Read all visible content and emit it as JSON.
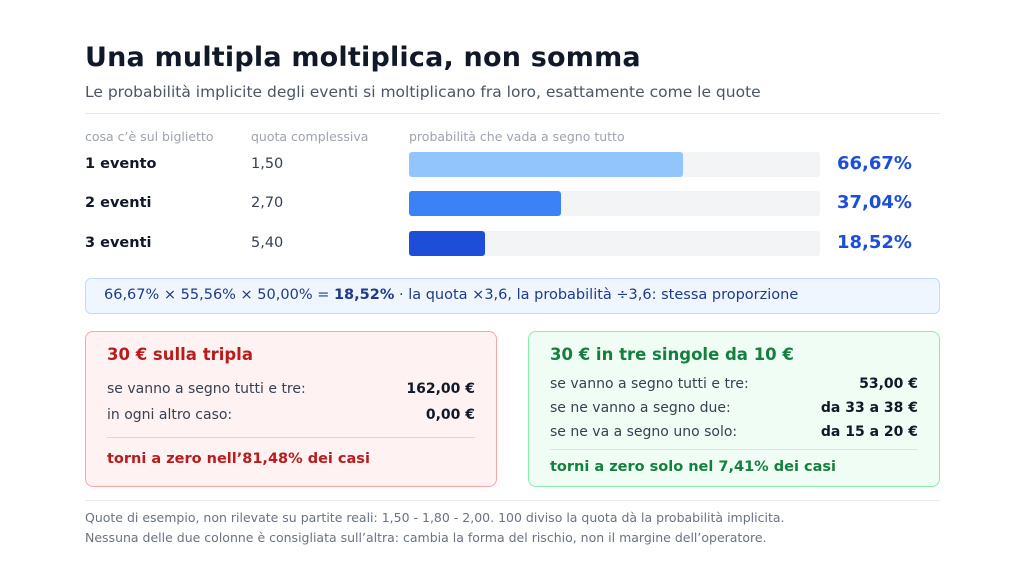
{
  "header": {
    "title": "Una multipla moltiplica, non somma",
    "subtitle": "Le probabilità implicite degli eventi si moltiplicano fra loro, esattamente come le quote"
  },
  "columns": {
    "ticket": "cosa c’è sul biglietto",
    "quota": "quota complessiva",
    "probability": "probabilità che vada a segno tutto"
  },
  "rows": [
    {
      "label": "1 evento",
      "quota": "1,50",
      "probability_text": "66,67%",
      "probability": 66.67,
      "bar_color": "#93c5fd"
    },
    {
      "label": "2 eventi",
      "quota": "2,70",
      "probability_text": "37,04%",
      "probability": 37.04,
      "bar_color": "#3b82f6"
    },
    {
      "label": "3 eventi",
      "quota": "5,40",
      "probability_text": "18,52%",
      "probability": 18.52,
      "bar_color": "#1d4ed8"
    }
  ],
  "formula": {
    "calc": "66,67% × 55,56% × 50,00% =",
    "result": "18,52%",
    "explanation": "· la quota ×3,6, la probabilità ÷3,6: stessa proporzione"
  },
  "cards": {
    "left": {
      "title": "30 € sulla tripla",
      "rows": [
        {
          "label": "se vanno a segno tutti e tre:",
          "value": "162,00 €"
        },
        {
          "label": "in ogni altro caso:",
          "value": "0,00 €"
        }
      ],
      "footer": "torni a zero nell’81,48% dei casi"
    },
    "right": {
      "title": "30 € in tre singole da 10 €",
      "rows": [
        {
          "label": "se vanno a segno tutti e tre:",
          "value": "53,00 €"
        },
        {
          "label": "se ne vanno a segno due:",
          "value": "da 33 a 38 €"
        },
        {
          "label": "se ne va a segno uno solo:",
          "value": "da 15 a 20 €"
        }
      ],
      "footer": "torni a zero solo nel 7,41% dei casi"
    }
  },
  "notes": [
    "Quote di esempio, non rilevate su partite reali: 1,50 - 1,80 - 2,00. 100 diviso la quota dà la probabilità implicita.",
    "Nessuna delle due colonne è consigliata sull’altra: cambia la forma del rischio, non il margine dell’operatore."
  ]
}
